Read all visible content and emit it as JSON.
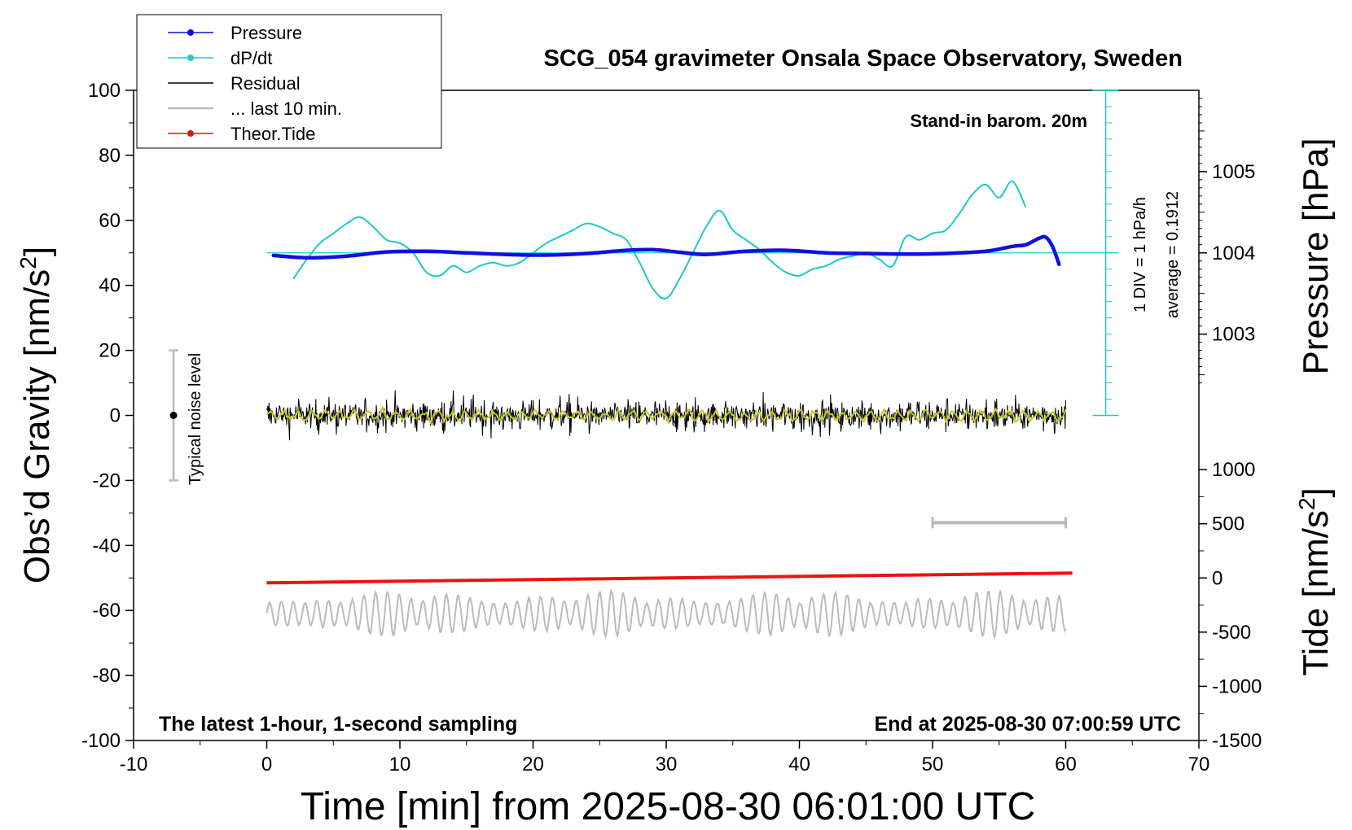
{
  "chart_data": {
    "type": "line",
    "title": "SCG_054 gravimeter Onsala Space Observatory, Sweden",
    "xlabel": "Time [min] from 2025-08-30 06:01:00 UTC",
    "ylabel_main": "Obs’d Gravity [nm/s",
    "ylabel_pressure": "Pressure [hPa]",
    "ylabel_tide": "Tide [nm/s",
    "sup2": "2",
    "xlim": [
      -10,
      70
    ],
    "ylim": [
      -100,
      100
    ],
    "xticks": [
      "-10",
      "0",
      "10",
      "20",
      "30",
      "40",
      "50",
      "60",
      "70"
    ],
    "xtick_values": [
      -10,
      0,
      10,
      20,
      30,
      40,
      50,
      60,
      70
    ],
    "yticks": [
      "-100",
      "-80",
      "-60",
      "-40",
      "-20",
      "0",
      "20",
      "40",
      "60",
      "80",
      "100"
    ],
    "ytick_values": [
      -100,
      -80,
      -60,
      -40,
      -20,
      0,
      20,
      40,
      60,
      80,
      100
    ],
    "pressure_axis": {
      "ticks": [
        "1003",
        "1004",
        "1005"
      ],
      "tick_values": [
        1003,
        1004,
        1005
      ],
      "gravity_at_1004": 50,
      "gravity_per_hpa": 25
    },
    "tide_axis": {
      "ticks": [
        "1000",
        "500",
        "0",
        "-500",
        "-1000",
        "-1500"
      ],
      "tick_values": [
        1000,
        500,
        0,
        -500,
        -1000,
        -1500
      ],
      "gravity_at_minus1500": -100,
      "gravity_per_unit": 0.0333333
    },
    "dpdt_scale": {
      "label_div": "1 DIV = 1 hPa/h",
      "label_avg": "average = 0.1912",
      "x": 63,
      "y_range": [
        0,
        100
      ],
      "center": 50,
      "div": 5
    },
    "annotations": {
      "barometer": "Stand-in barom. 20m",
      "latest": "The latest 1-hour, 1-second sampling",
      "end": "End at 2025-08-30 07:00:59 UTC",
      "noise": "Typical noise level"
    },
    "noise_bar": {
      "x": -7,
      "y": 0,
      "range": [
        -20,
        20
      ]
    },
    "last10_bar": {
      "x": [
        50,
        60
      ],
      "y": -33
    },
    "legend": [
      {
        "label": "Pressure",
        "color": "#1010e0",
        "marker": true
      },
      {
        "label": "dP/dt",
        "color": "#20c8c8",
        "marker": true
      },
      {
        "label": "Residual",
        "color": "#000000",
        "marker": false
      },
      {
        "label": "... last 10 min.",
        "color": "#bbbbbb",
        "marker": false
      },
      {
        "label": "Theor.Tide",
        "color": "#ee1111",
        "marker": true
      }
    ],
    "series": [
      {
        "name": "Pressure",
        "color": "#1010e0",
        "x": [
          0.5,
          3,
          6,
          9,
          12,
          15,
          18,
          21,
          24,
          27,
          29,
          31,
          33,
          36,
          39,
          42,
          45,
          48,
          51,
          54,
          56,
          57,
          58,
          58.5,
          59,
          59.5
        ],
        "y": [
          49.2,
          48.5,
          49.0,
          50.3,
          50.5,
          50.0,
          49.5,
          49.3,
          49.8,
          50.8,
          51.0,
          50.2,
          49.5,
          50.5,
          50.8,
          50.0,
          49.8,
          49.6,
          49.8,
          50.5,
          52.0,
          52.5,
          54.5,
          54.8,
          52.0,
          46.5
        ]
      },
      {
        "name": "dP/dt",
        "color": "#20c8c8",
        "x": [
          2,
          3,
          4,
          5,
          6,
          7,
          8,
          9,
          10,
          11,
          12,
          13,
          14,
          15,
          16,
          17,
          18,
          19,
          20,
          21,
          22,
          23,
          24,
          25,
          26,
          27,
          28,
          29,
          30,
          31,
          32,
          33,
          34,
          35,
          36,
          37,
          38,
          39,
          40,
          41,
          42,
          43,
          44,
          45,
          46,
          47,
          48,
          49,
          50,
          51,
          52,
          53,
          54,
          55,
          56,
          57
        ],
        "y": [
          42,
          48,
          53,
          56,
          59,
          61,
          58,
          54,
          53,
          50,
          44,
          43,
          46,
          44,
          46,
          47,
          46,
          47,
          50,
          53,
          55,
          57,
          59,
          58,
          56,
          54,
          47,
          39,
          36,
          42,
          50,
          58,
          63,
          57,
          54,
          51,
          47,
          44,
          43,
          45,
          46,
          48,
          49,
          50,
          48,
          46,
          55,
          54,
          56,
          57,
          62,
          68,
          71,
          67,
          72,
          64
        ]
      },
      {
        "name": "Residual",
        "color": "#000000",
        "x_range": [
          0,
          60
        ],
        "amplitude": 9,
        "mean": 0
      },
      {
        "name": "Residual (smoothed)",
        "color": "#c8c820",
        "x_range": [
          0,
          60
        ],
        "amplitude": 2.5
      },
      {
        "name": "... last 10 min.",
        "color": "#bbbbbb",
        "x_range": [
          0,
          60
        ],
        "mean": -61,
        "amplitude": 7
      },
      {
        "name": "Theor.Tide",
        "color": "#ee1111",
        "x": [
          0,
          60.5
        ],
        "y": [
          -51.5,
          -48.5
        ]
      }
    ]
  }
}
